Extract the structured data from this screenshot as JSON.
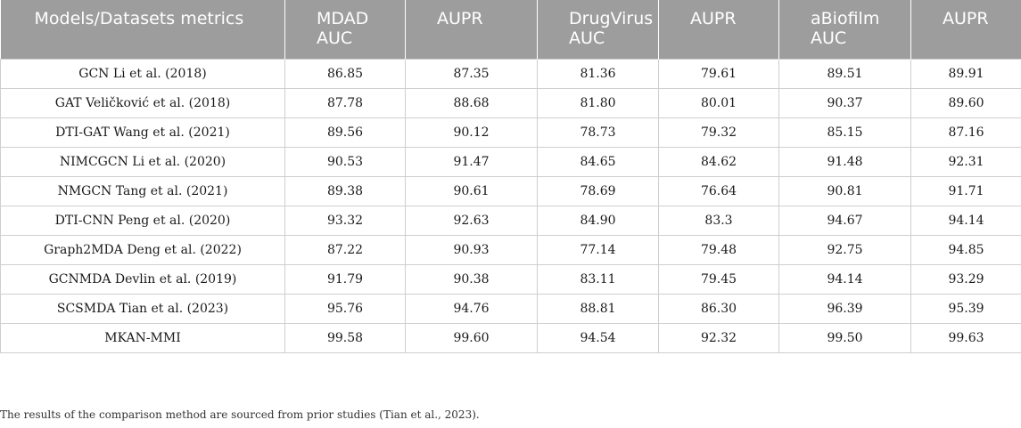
{
  "header": [
    "Models/Datasets metrics",
    "MDAD\nAUC",
    "AUPR",
    "DrugVirus\nAUC",
    "AUPR",
    "aBiofilm\nAUC",
    "AUPR"
  ],
  "rows": [
    [
      "GCN Li et al. (2018)",
      "86.85",
      "87.35",
      "81.36",
      "79.61",
      "89.51",
      "89.91"
    ],
    [
      "GAT Veličković et al. (2018)",
      "87.78",
      "88.68",
      "81.80",
      "80.01",
      "90.37",
      "89.60"
    ],
    [
      "DTI-GAT Wang et al. (2021)",
      "89.56",
      "90.12",
      "78.73",
      "79.32",
      "85.15",
      "87.16"
    ],
    [
      "NIMCGCN Li et al. (2020)",
      "90.53",
      "91.47",
      "84.65",
      "84.62",
      "91.48",
      "92.31"
    ],
    [
      "NMGCN Tang et al. (2021)",
      "89.38",
      "90.61",
      "78.69",
      "76.64",
      "90.81",
      "91.71"
    ],
    [
      "DTI-CNN Peng et al. (2020)",
      "93.32",
      "92.63",
      "84.90",
      "83.3",
      "94.67",
      "94.14"
    ],
    [
      "Graph2MDA Deng et al. (2022)",
      "87.22",
      "90.93",
      "77.14",
      "79.48",
      "92.75",
      "94.85"
    ],
    [
      "GCNMDA Devlin et al. (2019)",
      "91.79",
      "90.38",
      "83.11",
      "79.45",
      "94.14",
      "93.29"
    ],
    [
      "SCSMDA Tian et al. (2023)",
      "95.76",
      "94.76",
      "88.81",
      "86.30",
      "96.39",
      "95.39"
    ],
    [
      "MKAN-MMI",
      "99.58",
      "99.60",
      "94.54",
      "92.32",
      "99.50",
      "99.63"
    ]
  ],
  "footnote": "The results of the comparison method are sourced from prior studies (Tian et al., 2023).",
  "colors": {
    "header_bg": "#9d9d9d",
    "header_text": "#ffffff",
    "grid": "#cfcfcf"
  }
}
